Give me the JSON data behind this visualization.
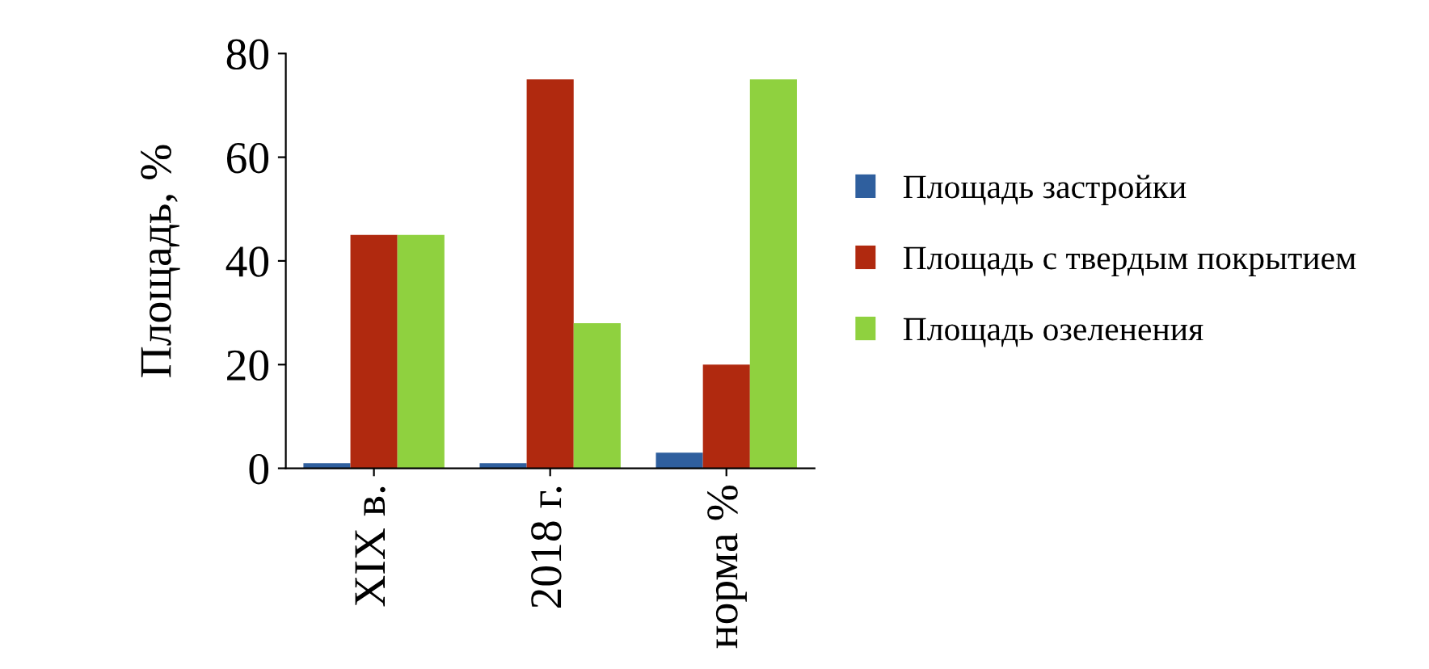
{
  "chart_data": {
    "type": "bar",
    "ylabel": "Площадь, %",
    "categories": [
      "XIX в.",
      "2018 г.",
      "норма %"
    ],
    "series": [
      {
        "name": "Площадь застройки",
        "color": "#2f5f9e",
        "values": [
          1,
          1,
          3
        ]
      },
      {
        "name": "Площадь с твердым покрытием",
        "color": "#b0290f",
        "values": [
          45,
          75,
          20
        ]
      },
      {
        "name": "Площадь озеленения",
        "color": "#8fd13f",
        "values": [
          45,
          28,
          75
        ]
      }
    ],
    "ylim": [
      0,
      80
    ],
    "yticks": [
      0,
      20,
      40,
      60,
      80
    ],
    "grid": false,
    "legend": "right"
  }
}
